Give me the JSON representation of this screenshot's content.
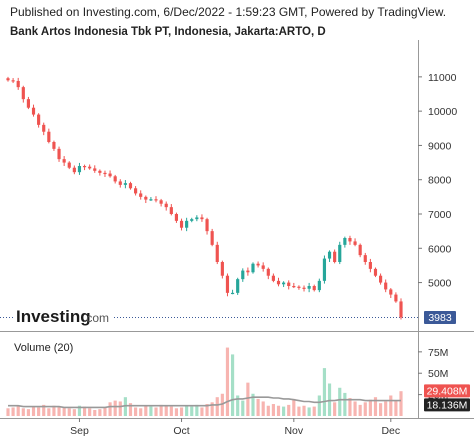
{
  "header": {
    "publish_text": "Published on Investing.com, 6/Dec/2022 - 1:59:23 GMT, Powered by TradingView.",
    "title": "Bank Artos Indonesia Tbk PT, Indonesia, Jakarta:ARTO, D"
  },
  "logo": {
    "main": "Investing",
    "suffix": ".com"
  },
  "colors": {
    "up": "#26a69a",
    "down": "#ef5350",
    "up_volume": "#a5dfc7",
    "down_volume": "#f7b4b0",
    "volume_ma": "#999999",
    "last_price_badge": "#3b5998",
    "volume_badge": "#ef5350",
    "ma_badge": "#222222"
  },
  "chart_data": [
    {
      "type": "candlestick",
      "title": "Bank Artos Indonesia Tbk PT, Indonesia, Jakarta:ARTO, D",
      "x_ticks": [
        "Sep",
        "Oct",
        "Nov",
        "Dec"
      ],
      "y_ticks": [
        5000,
        6000,
        7000,
        8000,
        9000,
        10000,
        11000
      ],
      "ylim": [
        3850,
        11550
      ],
      "last_price": "3983",
      "close": [
        10900,
        10880,
        10700,
        10350,
        10100,
        9900,
        9600,
        9400,
        9100,
        8900,
        8600,
        8500,
        8350,
        8220,
        8400,
        8380,
        8330,
        8260,
        8200,
        8180,
        8100,
        7950,
        7850,
        7900,
        7750,
        7600,
        7500,
        7420,
        7430,
        7400,
        7300,
        7200,
        7000,
        6800,
        6600,
        6800,
        6850,
        6900,
        6850,
        6500,
        6100,
        5600,
        5200,
        4700,
        4700,
        5100,
        5350,
        5300,
        5550,
        5500,
        5400,
        5200,
        5050,
        4950,
        5000,
        4900,
        4880,
        4850,
        4820,
        4900,
        4780,
        5050,
        5700,
        5900,
        5600,
        6100,
        6300,
        6200,
        6100,
        5800,
        5600,
        5400,
        5200,
        5000,
        4800,
        4650,
        4450,
        3983
      ],
      "volume": {
        "label": "Volume (20)",
        "y_ticks": [
          "25M",
          "50M",
          "75M"
        ],
        "ylim": [
          0,
          83
        ],
        "current_volume": "29.408M",
        "current_ma": "18.136M",
        "values": [
          9,
          10,
          12,
          9,
          8,
          11,
          10,
          13,
          9,
          12,
          11,
          10,
          9,
          8,
          12,
          11,
          9,
          7,
          8,
          10,
          16,
          18,
          17,
          22,
          15,
          10,
          9,
          12,
          11,
          10,
          13,
          12,
          11,
          9,
          10,
          12,
          11,
          13,
          10,
          14,
          16,
          22,
          26,
          80,
          72,
          24,
          18,
          39,
          26,
          20,
          17,
          12,
          14,
          12,
          11,
          13,
          20,
          11,
          12,
          10,
          11,
          24,
          56,
          38,
          16,
          33,
          27,
          21,
          17,
          13,
          16,
          19,
          22,
          15,
          17,
          24,
          18,
          29
        ],
        "ma": [
          12,
          12,
          12,
          11,
          11,
          11,
          11,
          11,
          11,
          11,
          11,
          10,
          10,
          10,
          10,
          10,
          10,
          10,
          10,
          10,
          11,
          11,
          11,
          12,
          12,
          12,
          12,
          12,
          12,
          12,
          12,
          12,
          12,
          12,
          12,
          12,
          12,
          12,
          12,
          12,
          13,
          13,
          14,
          17,
          19,
          20,
          20,
          21,
          22,
          22,
          22,
          22,
          21,
          21,
          20,
          20,
          19,
          18,
          17,
          17,
          16,
          16,
          17,
          18,
          18,
          19,
          19,
          19,
          19,
          19,
          18,
          18,
          18,
          18,
          18,
          18,
          18,
          18
        ]
      }
    }
  ]
}
